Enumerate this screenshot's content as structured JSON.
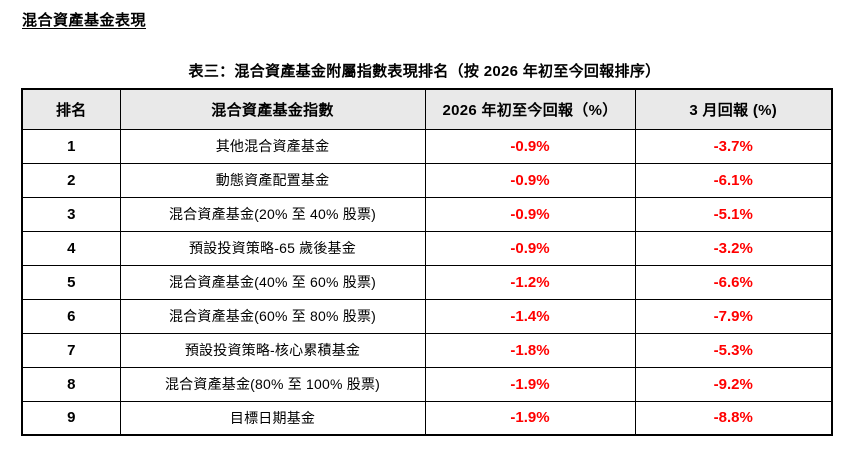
{
  "page": {
    "title": "混合資產基金表現",
    "caption": "表三：混合資產基金附屬指數表現排名（按 2026 年初至今回報排序）"
  },
  "table": {
    "headers": {
      "rank": "排名",
      "index_name": "混合資產基金指數",
      "ytd_return": "2026 年初至今回報（%）",
      "march_return": "3 月回報 (%)"
    },
    "rows": [
      {
        "rank": "1",
        "name": "其他混合資產基金",
        "ytd": "-0.9%",
        "march": "-3.7%"
      },
      {
        "rank": "2",
        "name": "動態資產配置基金",
        "ytd": "-0.9%",
        "march": "-6.1%"
      },
      {
        "rank": "3",
        "name": "混合資產基金(20% 至 40% 股票)",
        "ytd": "-0.9%",
        "march": "-5.1%"
      },
      {
        "rank": "4",
        "name": "預設投資策略-65 歲後基金",
        "ytd": "-0.9%",
        "march": "-3.2%"
      },
      {
        "rank": "5",
        "name": "混合資產基金(40% 至 60% 股票)",
        "ytd": "-1.2%",
        "march": "-6.6%"
      },
      {
        "rank": "6",
        "name": "混合資產基金(60% 至 80% 股票)",
        "ytd": "-1.4%",
        "march": "-7.9%"
      },
      {
        "rank": "7",
        "name": "預設投資策略-核心累積基金",
        "ytd": "-1.8%",
        "march": "-5.3%"
      },
      {
        "rank": "8",
        "name": "混合資產基金(80% 至 100% 股票)",
        "ytd": "-1.9%",
        "march": "-9.2%"
      },
      {
        "rank": "9",
        "name": "目標日期基金",
        "ytd": "-1.9%",
        "march": "-8.8%"
      }
    ],
    "colors": {
      "value_text": "#ff0000",
      "header_bg": "#e9e9e9",
      "border": "#000000"
    }
  }
}
